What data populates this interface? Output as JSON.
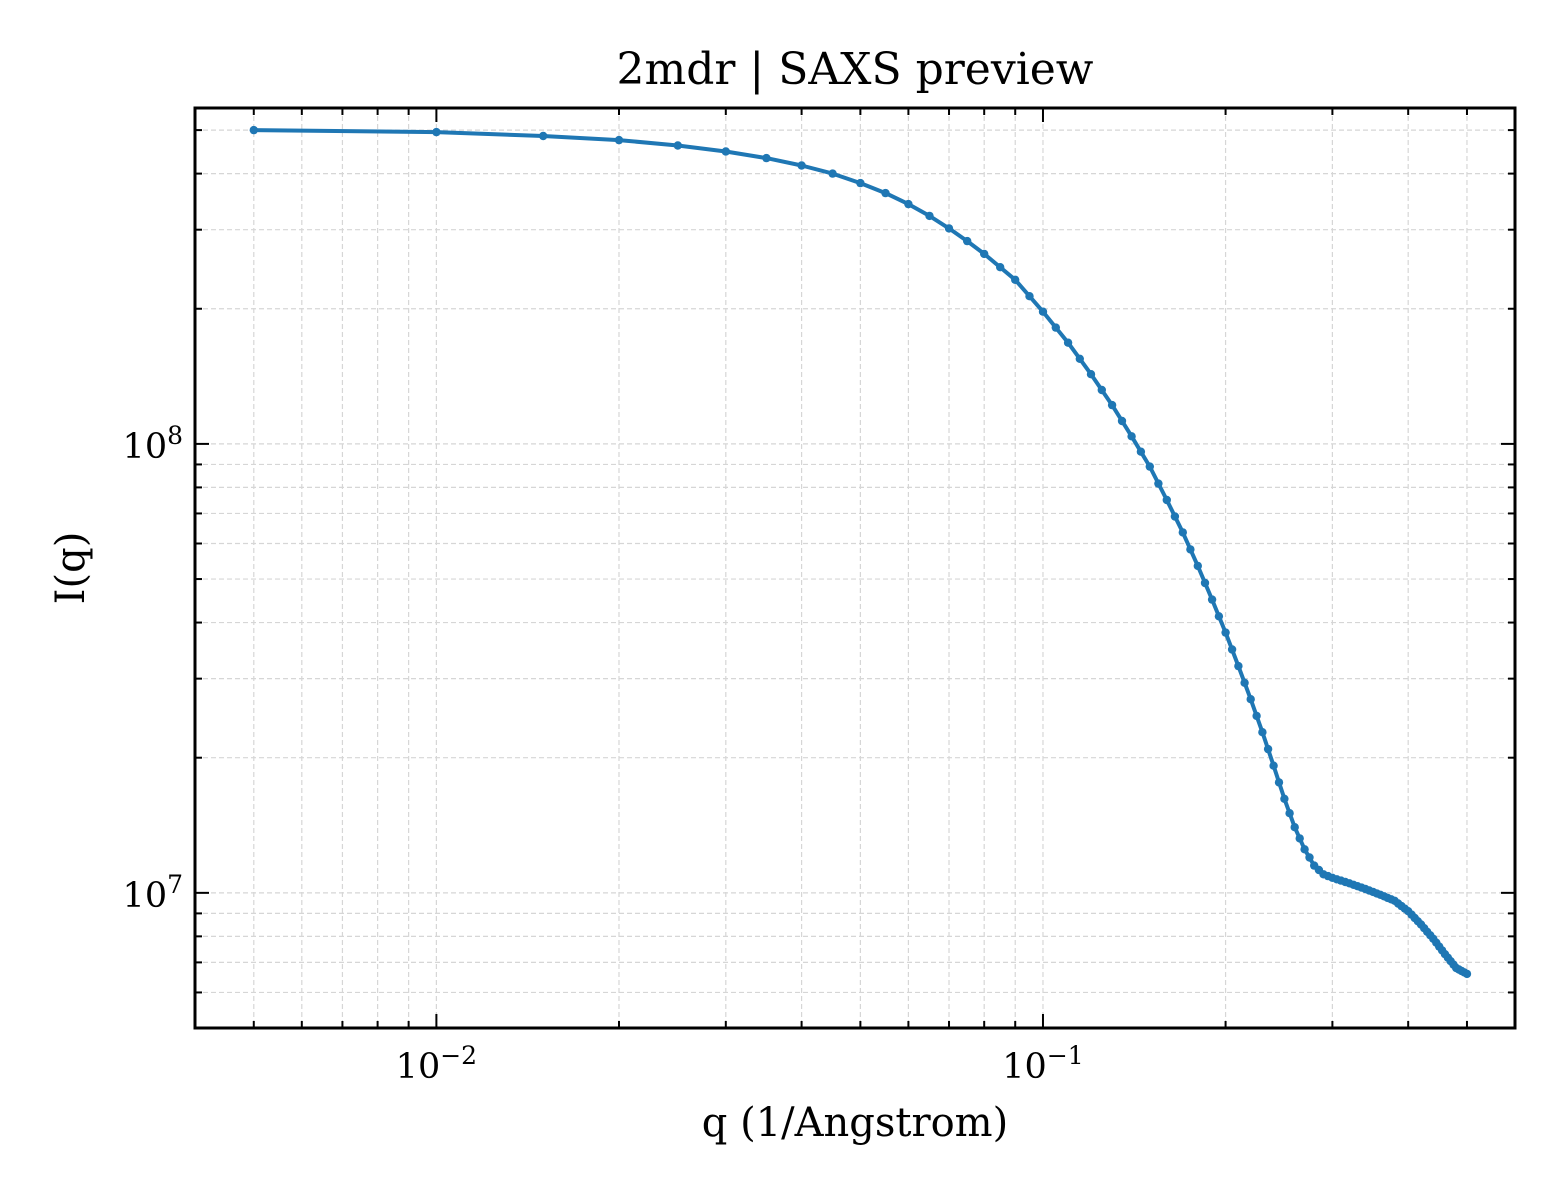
{
  "chart_data": {
    "type": "line",
    "title": "2mdr | SAXS preview",
    "xlabel": "q (1/Angstrom)",
    "ylabel": "I(q)",
    "x_scale": "log",
    "y_scale": "log",
    "xlim": [
      0.004,
      0.6
    ],
    "ylim": [
      5000000,
      560000000
    ],
    "grid": true,
    "x_major_ticks": [
      {
        "value": 0.01,
        "base": "10",
        "exp": "−2"
      },
      {
        "value": 0.1,
        "base": "10",
        "exp": "−1"
      }
    ],
    "y_major_ticks": [
      {
        "value": 10000000,
        "base": "10",
        "exp": "7"
      },
      {
        "value": 100000000,
        "base": "10",
        "exp": "8"
      }
    ],
    "line_color": "#1f77b4",
    "series": [
      {
        "name": "",
        "x": [
          0.005,
          0.01,
          0.015,
          0.02,
          0.025,
          0.03,
          0.035,
          0.04,
          0.045,
          0.05,
          0.055,
          0.06,
          0.065,
          0.07,
          0.075,
          0.08,
          0.09,
          0.1,
          0.11,
          0.12,
          0.13,
          0.14,
          0.15,
          0.16,
          0.17,
          0.18,
          0.19,
          0.2,
          0.21,
          0.22,
          0.23,
          0.24,
          0.25,
          0.26,
          0.27,
          0.28,
          0.29,
          0.3,
          0.32,
          0.34,
          0.36,
          0.38,
          0.4,
          0.42,
          0.44,
          0.46,
          0.48,
          0.5
        ],
        "y": [
          500000000,
          495000000,
          485000000,
          475000000,
          462000000,
          448000000,
          433000000,
          417000000,
          400000000,
          381000000,
          362000000,
          342000000,
          322000000,
          302000000,
          283000000,
          265000000,
          232000000,
          197000000,
          168000000,
          143000000,
          122000000,
          104000000,
          89000000,
          75000000,
          63500000,
          53500000,
          45000000,
          38000000,
          32000000,
          27000000,
          22800000,
          19200000,
          16200000,
          14000000,
          12500000,
          11500000,
          11000000,
          10800000,
          10500000,
          10200000,
          9900000,
          9600000,
          9100000,
          8500000,
          7900000,
          7300000,
          6800000,
          6600000
        ]
      }
    ]
  }
}
